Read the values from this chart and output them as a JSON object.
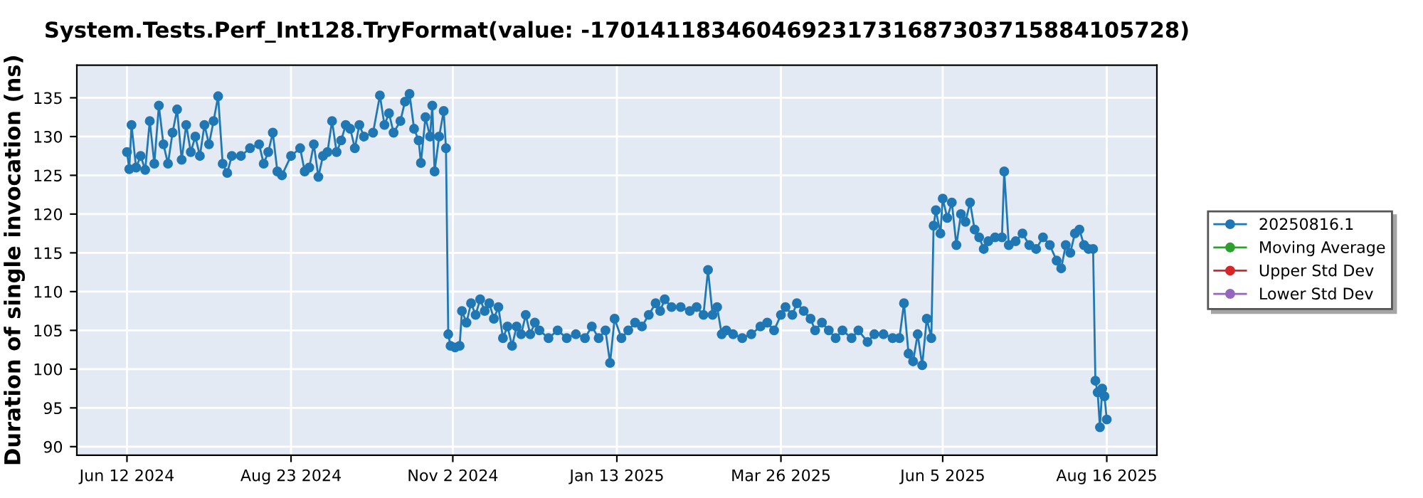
{
  "chart_data": {
    "type": "line",
    "title": "System.Tests.Perf_Int128.TryFormat(value: -170141183460469231731687303715884105728)",
    "ylabel": "Duration of single invocation (ns)",
    "x": [
      "2024-06-12",
      "2024-06-13",
      "2024-06-14",
      "2024-06-16",
      "2024-06-18",
      "2024-06-20",
      "2024-06-22",
      "2024-06-24",
      "2024-06-26",
      "2024-06-28",
      "2024-06-30",
      "2024-07-02",
      "2024-07-04",
      "2024-07-06",
      "2024-07-08",
      "2024-07-10",
      "2024-07-12",
      "2024-07-14",
      "2024-07-16",
      "2024-07-18",
      "2024-07-20",
      "2024-07-22",
      "2024-07-24",
      "2024-07-26",
      "2024-07-28",
      "2024-08-01",
      "2024-08-05",
      "2024-08-09",
      "2024-08-11",
      "2024-08-13",
      "2024-08-15",
      "2024-08-17",
      "2024-08-19",
      "2024-08-23",
      "2024-08-27",
      "2024-08-29",
      "2024-08-31",
      "2024-09-02",
      "2024-09-04",
      "2024-09-06",
      "2024-09-08",
      "2024-09-10",
      "2024-09-12",
      "2024-09-14",
      "2024-09-16",
      "2024-09-18",
      "2024-09-20",
      "2024-09-22",
      "2024-09-24",
      "2024-09-28",
      "2024-10-01",
      "2024-10-03",
      "2024-10-05",
      "2024-10-07",
      "2024-10-10",
      "2024-10-12",
      "2024-10-14",
      "2024-10-16",
      "2024-10-18",
      "2024-10-19",
      "2024-10-21",
      "2024-10-23",
      "2024-10-24",
      "2024-10-25",
      "2024-10-27",
      "2024-10-29",
      "2024-10-30",
      "2024-10-31",
      "2024-11-01",
      "2024-11-03",
      "2024-11-05",
      "2024-11-06",
      "2024-11-08",
      "2024-11-10",
      "2024-11-12",
      "2024-11-14",
      "2024-11-16",
      "2024-11-18",
      "2024-11-20",
      "2024-11-22",
      "2024-11-24",
      "2024-11-26",
      "2024-11-28",
      "2024-11-30",
      "2024-12-02",
      "2024-12-04",
      "2024-12-06",
      "2024-12-08",
      "2024-12-10",
      "2024-12-14",
      "2024-12-18",
      "2024-12-22",
      "2024-12-26",
      "2024-12-30",
      "2025-01-02",
      "2025-01-05",
      "2025-01-08",
      "2025-01-10",
      "2025-01-12",
      "2025-01-15",
      "2025-01-18",
      "2025-01-21",
      "2025-01-24",
      "2025-01-27",
      "2025-01-30",
      "2025-02-01",
      "2025-02-03",
      "2025-02-06",
      "2025-02-10",
      "2025-02-14",
      "2025-02-17",
      "2025-02-20",
      "2025-02-22",
      "2025-02-24",
      "2025-02-26",
      "2025-02-28",
      "2025-03-02",
      "2025-03-05",
      "2025-03-09",
      "2025-03-13",
      "2025-03-17",
      "2025-03-20",
      "2025-03-23",
      "2025-03-26",
      "2025-03-28",
      "2025-03-31",
      "2025-04-02",
      "2025-04-05",
      "2025-04-08",
      "2025-04-10",
      "2025-04-13",
      "2025-04-16",
      "2025-04-19",
      "2025-04-22",
      "2025-04-26",
      "2025-04-29",
      "2025-05-03",
      "2025-05-06",
      "2025-05-10",
      "2025-05-14",
      "2025-05-17",
      "2025-05-19",
      "2025-05-21",
      "2025-05-23",
      "2025-05-25",
      "2025-05-27",
      "2025-05-29",
      "2025-05-31",
      "2025-06-01",
      "2025-06-02",
      "2025-06-04",
      "2025-06-05",
      "2025-06-07",
      "2025-06-09",
      "2025-06-11",
      "2025-06-13",
      "2025-06-15",
      "2025-06-17",
      "2025-06-19",
      "2025-06-21",
      "2025-06-23",
      "2025-06-25",
      "2025-06-28",
      "2025-07-01",
      "2025-07-02",
      "2025-07-04",
      "2025-07-07",
      "2025-07-10",
      "2025-07-13",
      "2025-07-16",
      "2025-07-19",
      "2025-07-22",
      "2025-07-25",
      "2025-07-27",
      "2025-07-29",
      "2025-07-31",
      "2025-08-02",
      "2025-08-04",
      "2025-08-06",
      "2025-08-08",
      "2025-08-10",
      "2025-08-11",
      "2025-08-12",
      "2025-08-13",
      "2025-08-14",
      "2025-08-15",
      "2025-08-16"
    ],
    "series": [
      {
        "name": "20250816.1",
        "color": "#1f77b4",
        "values": [
          128.0,
          125.8,
          131.5,
          126.0,
          127.5,
          125.7,
          132.0,
          126.5,
          134.0,
          129.0,
          126.5,
          130.5,
          133.5,
          127.0,
          131.5,
          128.0,
          130.0,
          127.5,
          131.5,
          129.0,
          132.0,
          135.2,
          126.5,
          125.3,
          127.5,
          127.5,
          128.5,
          129.0,
          126.5,
          128.0,
          130.5,
          125.5,
          125.0,
          127.5,
          128.5,
          125.5,
          126.0,
          129.0,
          124.8,
          127.5,
          128.0,
          132.0,
          128.0,
          129.5,
          131.5,
          131.0,
          128.5,
          131.5,
          130.0,
          130.5,
          135.3,
          131.5,
          133.0,
          130.5,
          132.0,
          134.5,
          135.5,
          131.0,
          129.5,
          126.6,
          132.5,
          130.0,
          134.0,
          125.5,
          130.0,
          133.3,
          128.5,
          104.5,
          103.0,
          102.8,
          103.0,
          107.5,
          106.0,
          108.5,
          107.0,
          109.0,
          107.5,
          108.5,
          106.5,
          108.0,
          104.0,
          105.5,
          103.0,
          105.5,
          104.5,
          107.0,
          104.5,
          106.0,
          105.0,
          104.0,
          105.0,
          104.0,
          104.5,
          104.0,
          105.5,
          104.0,
          105.0,
          100.8,
          106.5,
          104.0,
          105.0,
          106.0,
          105.5,
          107.0,
          108.5,
          107.5,
          109.0,
          108.0,
          108.0,
          107.5,
          108.0,
          107.0,
          112.8,
          107.0,
          108.0,
          104.5,
          105.0,
          104.5,
          104.0,
          104.5,
          105.5,
          106.0,
          105.0,
          107.0,
          108.0,
          107.0,
          108.5,
          107.5,
          106.5,
          105.0,
          106.0,
          105.0,
          104.0,
          105.0,
          104.0,
          105.0,
          103.5,
          104.5,
          104.5,
          104.0,
          104.0,
          108.5,
          102.0,
          101.0,
          104.5,
          100.5,
          106.5,
          104.0,
          118.5,
          120.5,
          117.5,
          122.0,
          119.5,
          121.5,
          116.0,
          120.0,
          119.0,
          121.5,
          118.0,
          117.0,
          115.5,
          116.5,
          117.0,
          117.0,
          125.5,
          116.0,
          116.5,
          117.5,
          116.0,
          115.5,
          117.0,
          116.0,
          114.0,
          113.0,
          116.0,
          115.0,
          117.5,
          118.0,
          116.0,
          115.5,
          115.5,
          98.5,
          97.0,
          92.5,
          97.5,
          96.5,
          93.5
        ]
      },
      {
        "name": "Moving Average",
        "color": "#2ca02c",
        "values": [
          null,
          null,
          null,
          null,
          null,
          null,
          null,
          null,
          null,
          null,
          null,
          null,
          null,
          null,
          null,
          null,
          null,
          null,
          null,
          null,
          null,
          null,
          null,
          null,
          null,
          null,
          null,
          null,
          null,
          null,
          null,
          null,
          null,
          null,
          null,
          null,
          null,
          null,
          null,
          null,
          null,
          null,
          null,
          null,
          null,
          null,
          null,
          null,
          null,
          null,
          null,
          null,
          null,
          null,
          null,
          null,
          null,
          null,
          null,
          null,
          null,
          null,
          null,
          null,
          null,
          null,
          null,
          null,
          null,
          null,
          null,
          null,
          null,
          null,
          null,
          null,
          null,
          null,
          null,
          null,
          null,
          null,
          null,
          null,
          null,
          null,
          null,
          null,
          null,
          null,
          null,
          null,
          null,
          null,
          null,
          null,
          null,
          null,
          null,
          null,
          null,
          null,
          null,
          null,
          null,
          null,
          null,
          null,
          null,
          null,
          null,
          null,
          null,
          null,
          null,
          null,
          null,
          null,
          null,
          null,
          null,
          null,
          null,
          null,
          null,
          null,
          null,
          null,
          null,
          null,
          null,
          null,
          null,
          null,
          null,
          null,
          null,
          null,
          null,
          null,
          null,
          null,
          null,
          null,
          null,
          null,
          null,
          null,
          null,
          null,
          null,
          null,
          null,
          null,
          null,
          null,
          null,
          null,
          null,
          null,
          null,
          null,
          null,
          null,
          null,
          null,
          null,
          null,
          null,
          null,
          null,
          null,
          null,
          null,
          null,
          null,
          null,
          null,
          null,
          null,
          null,
          null,
          null,
          null,
          null,
          null,
          null
        ]
      },
      {
        "name": "Upper Std Dev",
        "color": "#d62728",
        "values": [
          null,
          null,
          null,
          null,
          null,
          null,
          null,
          null,
          null,
          null,
          null,
          null,
          null,
          null,
          null,
          null,
          null,
          null,
          null,
          null,
          null,
          null,
          null,
          null,
          null,
          null,
          null,
          null,
          null,
          null,
          null,
          null,
          null,
          null,
          null,
          null,
          null,
          null,
          null,
          null,
          null,
          null,
          null,
          null,
          null,
          null,
          null,
          null,
          null,
          null,
          null,
          null,
          null,
          null,
          null,
          null,
          null,
          null,
          null,
          null,
          null,
          null,
          null,
          null,
          null,
          null,
          null,
          null,
          null,
          null,
          null,
          null,
          null,
          null,
          null,
          null,
          null,
          null,
          null,
          null,
          null,
          null,
          null,
          null,
          null,
          null,
          null,
          null,
          null,
          null,
          null,
          null,
          null,
          null,
          null,
          null,
          null,
          null,
          null,
          null,
          null,
          null,
          null,
          null,
          null,
          null,
          null,
          null,
          null,
          null,
          null,
          null,
          null,
          null,
          null,
          null,
          null,
          null,
          null,
          null,
          null,
          null,
          null,
          null,
          null,
          null,
          null,
          null,
          null,
          null,
          null,
          null,
          null,
          null,
          null,
          null,
          null,
          null,
          null,
          null,
          null,
          null,
          null,
          null,
          null,
          null,
          null,
          null,
          null,
          null,
          null,
          null,
          null,
          null,
          null,
          null,
          null,
          null,
          null,
          null,
          null,
          null,
          null,
          null,
          null,
          null,
          null,
          null,
          null,
          null,
          null,
          null,
          null,
          null,
          null,
          null,
          null,
          null,
          null,
          null,
          null,
          null,
          null,
          null,
          null,
          null,
          null
        ]
      },
      {
        "name": "Lower Std Dev",
        "color": "#9467bd",
        "values": [
          null,
          null,
          null,
          null,
          null,
          null,
          null,
          null,
          null,
          null,
          null,
          null,
          null,
          null,
          null,
          null,
          null,
          null,
          null,
          null,
          null,
          null,
          null,
          null,
          null,
          null,
          null,
          null,
          null,
          null,
          null,
          null,
          null,
          null,
          null,
          null,
          null,
          null,
          null,
          null,
          null,
          null,
          null,
          null,
          null,
          null,
          null,
          null,
          null,
          null,
          null,
          null,
          null,
          null,
          null,
          null,
          null,
          null,
          null,
          null,
          null,
          null,
          null,
          null,
          null,
          null,
          null,
          null,
          null,
          null,
          null,
          null,
          null,
          null,
          null,
          null,
          null,
          null,
          null,
          null,
          null,
          null,
          null,
          null,
          null,
          null,
          null,
          null,
          null,
          null,
          null,
          null,
          null,
          null,
          null,
          null,
          null,
          null,
          null,
          null,
          null,
          null,
          null,
          null,
          null,
          null,
          null,
          null,
          null,
          null,
          null,
          null,
          null,
          null,
          null,
          null,
          null,
          null,
          null,
          null,
          null,
          null,
          null,
          null,
          null,
          null,
          null,
          null,
          null,
          null,
          null,
          null,
          null,
          null,
          null,
          null,
          null,
          null,
          null,
          null,
          null,
          null,
          null,
          null,
          null,
          null,
          null,
          null,
          null,
          null,
          null,
          null,
          null,
          null,
          null,
          null,
          null,
          null,
          null,
          null,
          null,
          null,
          null,
          null,
          null,
          null,
          null,
          null,
          null,
          null,
          null,
          null,
          null,
          null,
          null,
          null,
          null,
          null,
          null,
          null,
          null,
          null,
          null,
          null,
          null,
          null,
          null
        ]
      }
    ],
    "xlim": [
      "2024-05-21",
      "2025-09-07"
    ],
    "xticks": [
      {
        "value": "2024-06-12",
        "label": "Jun 12 2024"
      },
      {
        "value": "2024-08-23",
        "label": "Aug 23 2024"
      },
      {
        "value": "2024-11-02",
        "label": "Nov 2 2024"
      },
      {
        "value": "2025-01-13",
        "label": "Jan 13 2025"
      },
      {
        "value": "2025-03-26",
        "label": "Mar 26 2025"
      },
      {
        "value": "2025-06-05",
        "label": "Jun 5 2025"
      },
      {
        "value": "2025-08-16",
        "label": "Aug 16 2025"
      }
    ],
    "ylim": [
      88.9,
      139.2
    ],
    "yticks": [
      90,
      95,
      100,
      105,
      110,
      115,
      120,
      125,
      130,
      135
    ],
    "grid": true,
    "legend": "right",
    "marker": "circle",
    "line_style": "solid"
  }
}
